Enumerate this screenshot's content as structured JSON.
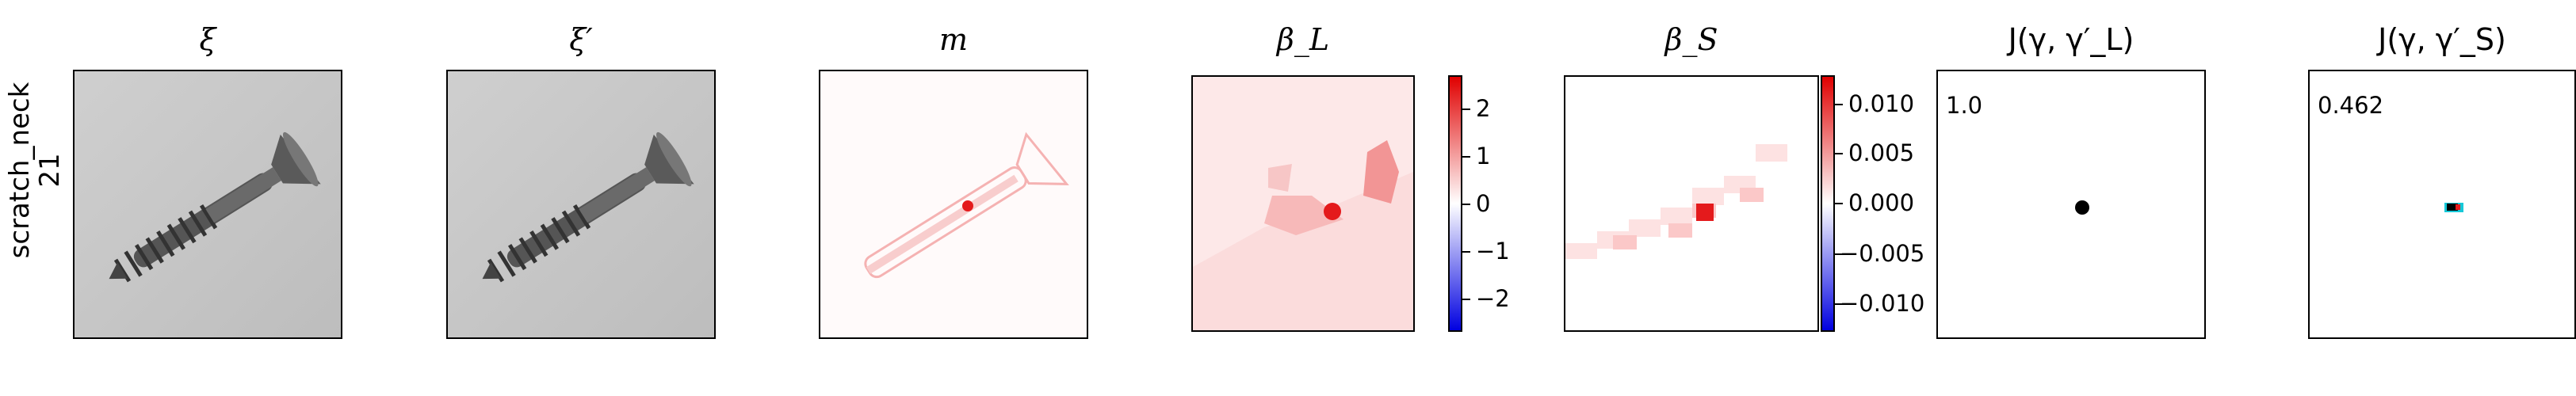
{
  "row": {
    "label_line1": "scratch_neck",
    "label_line2": "21"
  },
  "titles": {
    "xi": "ξ",
    "xi_prime": "ξ′",
    "m": "m",
    "beta_L": "β_L",
    "beta_S": "β_S",
    "J_L": "J(γ, γ′_L)",
    "J_S": "J(γ, γ′_S)"
  },
  "colorbar_L": {
    "ticks": [
      "2",
      "1",
      "0",
      "−1",
      "−2"
    ]
  },
  "colorbar_S": {
    "ticks": [
      "0.010",
      "0.005",
      "0.000",
      "−0.005",
      "−0.010"
    ]
  },
  "scores": {
    "J_L": "1.0",
    "J_S": "0.462"
  },
  "colors": {
    "positive": "#e41a1c",
    "negative": "#1f1fff",
    "cyan": "#16c8d8"
  }
}
